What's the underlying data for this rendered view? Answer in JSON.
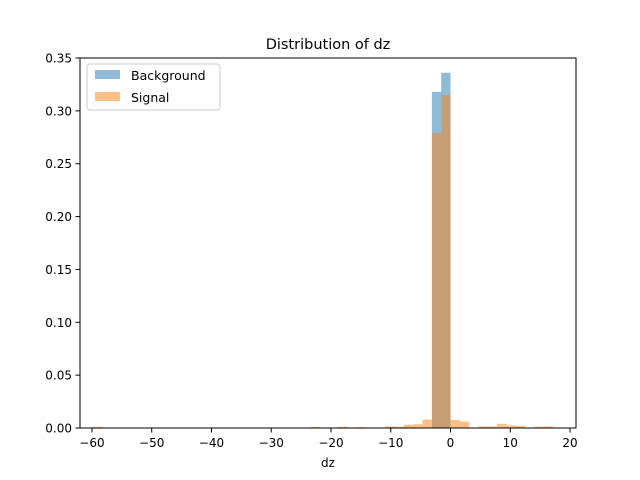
{
  "chart_data": {
    "type": "bar",
    "title": "Distribution of dz",
    "xlabel": "dz",
    "ylabel": "",
    "xlim": [
      -62,
      21
    ],
    "ylim": [
      0,
      0.35
    ],
    "xticks": [
      -60,
      -50,
      -40,
      -30,
      -20,
      -10,
      0,
      10,
      20
    ],
    "yticks": [
      0.0,
      0.05,
      0.1,
      0.15,
      0.2,
      0.25,
      0.3,
      0.35
    ],
    "xtick_labels": [
      "−60",
      "−50",
      "−40",
      "−30",
      "−20",
      "−10",
      "0",
      "10",
      "20"
    ],
    "ytick_labels": [
      "0.00",
      "0.05",
      "0.10",
      "0.15",
      "0.20",
      "0.25",
      "0.30",
      "0.35"
    ],
    "bin_width": 1.556,
    "legend_position": "top-left",
    "series": [
      {
        "name": "Background",
        "color": "#1f77b4",
        "alpha": 0.5,
        "bins": [
          {
            "x0": -3.11,
            "value": 0.318
          },
          {
            "x0": -1.556,
            "value": 0.336
          }
        ]
      },
      {
        "name": "Signal",
        "color": "#ff7f0e",
        "alpha": 0.5,
        "bins": [
          {
            "x0": -59.9,
            "value": 0.0012
          },
          {
            "x0": -23.4,
            "value": 0.001
          },
          {
            "x0": -18.8,
            "value": 0.0012
          },
          {
            "x0": -15.7,
            "value": 0.0008
          },
          {
            "x0": -10.9,
            "value": 0.0015
          },
          {
            "x0": -9.34,
            "value": 0.0012
          },
          {
            "x0": -7.78,
            "value": 0.003
          },
          {
            "x0": -6.22,
            "value": 0.0035
          },
          {
            "x0": -4.67,
            "value": 0.008
          },
          {
            "x0": -3.11,
            "value": 0.279
          },
          {
            "x0": -1.556,
            "value": 0.315
          },
          {
            "x0": 0.0,
            "value": 0.0075
          },
          {
            "x0": 1.556,
            "value": 0.006
          },
          {
            "x0": 4.67,
            "value": 0.0015
          },
          {
            "x0": 6.22,
            "value": 0.0015
          },
          {
            "x0": 7.78,
            "value": 0.004
          },
          {
            "x0": 9.34,
            "value": 0.0025
          },
          {
            "x0": 10.9,
            "value": 0.002
          },
          {
            "x0": 14.0,
            "value": 0.0012
          },
          {
            "x0": 15.6,
            "value": 0.0015
          }
        ]
      }
    ]
  }
}
